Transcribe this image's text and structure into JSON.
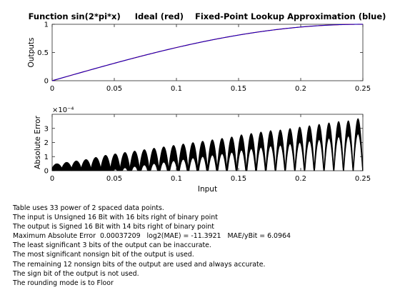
{
  "chart_data": [
    {
      "type": "line",
      "title": "Function sin(2*pi*x)     Ideal (red)    Fixed-Point Lookup Approximation (blue)",
      "xlabel": "",
      "ylabel": "Outputs",
      "xlim": [
        0,
        0.25
      ],
      "ylim": [
        0,
        1
      ],
      "xticks": [
        "0",
        "0.05",
        "0.1",
        "0.15",
        "0.2",
        "0.25"
      ],
      "yticks": [
        "0",
        "0.5",
        "1"
      ],
      "grid": false,
      "series": [
        {
          "name": "Ideal",
          "color": "#ff0000",
          "x": [
            0,
            0.025,
            0.05,
            0.075,
            0.1,
            0.125,
            0.15,
            0.175,
            0.2,
            0.225,
            0.25
          ],
          "y": [
            0,
            0.156,
            0.309,
            0.454,
            0.588,
            0.707,
            0.809,
            0.891,
            0.951,
            0.988,
            1.0
          ]
        },
        {
          "name": "Fixed-Point Lookup Approximation",
          "color": "#0000cc",
          "x": [
            0,
            0.025,
            0.05,
            0.075,
            0.1,
            0.125,
            0.15,
            0.175,
            0.2,
            0.225,
            0.25
          ],
          "y": [
            0,
            0.156,
            0.309,
            0.454,
            0.588,
            0.707,
            0.809,
            0.891,
            0.951,
            0.988,
            1.0
          ]
        }
      ]
    },
    {
      "type": "line",
      "title": "",
      "xlabel": "Input",
      "ylabel": "Absolute Error",
      "exponent_label": "×10⁻⁴",
      "xlim": [
        0,
        0.25
      ],
      "ylim": [
        0,
        0.0004
      ],
      "xticks": [
        "0",
        "0.05",
        "0.1",
        "0.15",
        "0.2",
        "0.25"
      ],
      "yticks": [
        "0",
        "1",
        "2",
        "3"
      ],
      "grid": false,
      "segments": 32,
      "series": [
        {
          "name": "Absolute Error",
          "color": "#000000",
          "x": [
            0.0039,
            0.0117,
            0.0195,
            0.0273,
            0.0352,
            0.043,
            0.0508,
            0.0586,
            0.0664,
            0.0742,
            0.082,
            0.0898,
            0.0977,
            0.1055,
            0.1133,
            0.1211,
            0.1289,
            0.1367,
            0.1445,
            0.1523,
            0.1602,
            0.168,
            0.1758,
            0.1836,
            0.1914,
            0.1992,
            0.207,
            0.2148,
            0.2227,
            0.2305,
            0.2383,
            0.2461
          ],
          "y": [
            5e-05,
            6e-05,
            7e-05,
            8e-05,
            9.5e-05,
            0.00011,
            0.00012,
            0.00013,
            0.00014,
            0.00015,
            0.00016,
            0.00017,
            0.00018,
            0.00019,
            0.0002,
            0.00021,
            0.00022,
            0.00023,
            0.00024,
            0.000255,
            0.000265,
            0.000275,
            0.000285,
            0.00029,
            0.0003,
            0.00031,
            0.00032,
            0.00033,
            0.00034,
            0.00035,
            0.000355,
            0.00037
          ]
        }
      ]
    }
  ],
  "notes": [
    "Table uses 33 power of 2 spaced data points.",
    "The input is Unsigned 16 Bit with 16 bits right of binary point",
    "The output is Signed 16 Bit with 14 bits right of binary point",
    "Maximum Absolute Error  0.00037209   log2(MAE) = -11.3921   MAE/yBit = 6.0964",
    "The least significant 3 bits of the output can be inaccurate.",
    "The most significant nonsign bit of the output is used.",
    "The remaining 12 nonsign bits of the output are used and always accurate.",
    "The sign bit of the output is not used.",
    "The rounding mode is to Floor"
  ]
}
